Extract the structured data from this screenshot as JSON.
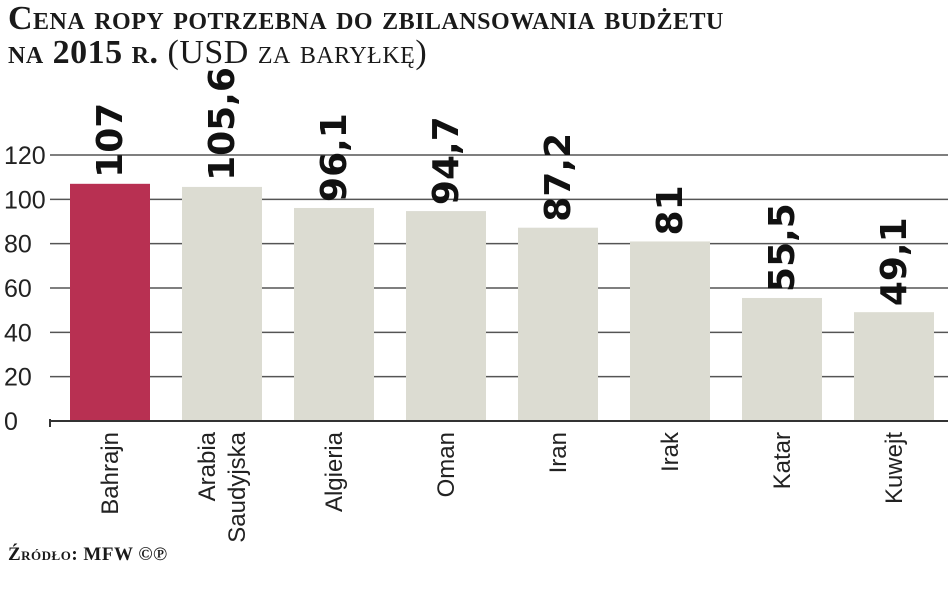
{
  "title": {
    "line1": "Cena ropy potrzebna do zbilansowania budżetu",
    "line2_main": "na 2015 r.",
    "line2_unit": "(USD za baryłkę)"
  },
  "source": "Źródło: MFW ©℗",
  "colors": {
    "highlight": "#b83052",
    "bar": "#dcdcd2",
    "grid": "#555555",
    "text": "#1a1a1a"
  },
  "chart_data": {
    "type": "bar",
    "categories": [
      "Bahrajn",
      "Arabia Saudyjska",
      "Algieria",
      "Oman",
      "Iran",
      "Irak",
      "Katar",
      "Kuwejt"
    ],
    "category_lines": [
      [
        "Bahrajn"
      ],
      [
        "Arabia",
        "Saudyjska"
      ],
      [
        "Algieria"
      ],
      [
        "Oman"
      ],
      [
        "Iran"
      ],
      [
        "Irak"
      ],
      [
        "Katar"
      ],
      [
        "Kuwejt"
      ]
    ],
    "values": [
      107,
      105.6,
      96.1,
      94.7,
      87.2,
      81,
      55.5,
      49.1
    ],
    "value_labels": [
      "107",
      "105,6",
      "96,1",
      "94,7",
      "87,2",
      "81",
      "55,5",
      "49,1"
    ],
    "highlight_index": 0,
    "title": "Cena ropy potrzebna do zbilansowania budżetu na 2015 r. (USD za baryłkę)",
    "xlabel": "",
    "ylabel": "",
    "ylim": [
      0,
      120
    ],
    "yticks": [
      0,
      20,
      40,
      60,
      80,
      100,
      120
    ],
    "grid": true
  }
}
